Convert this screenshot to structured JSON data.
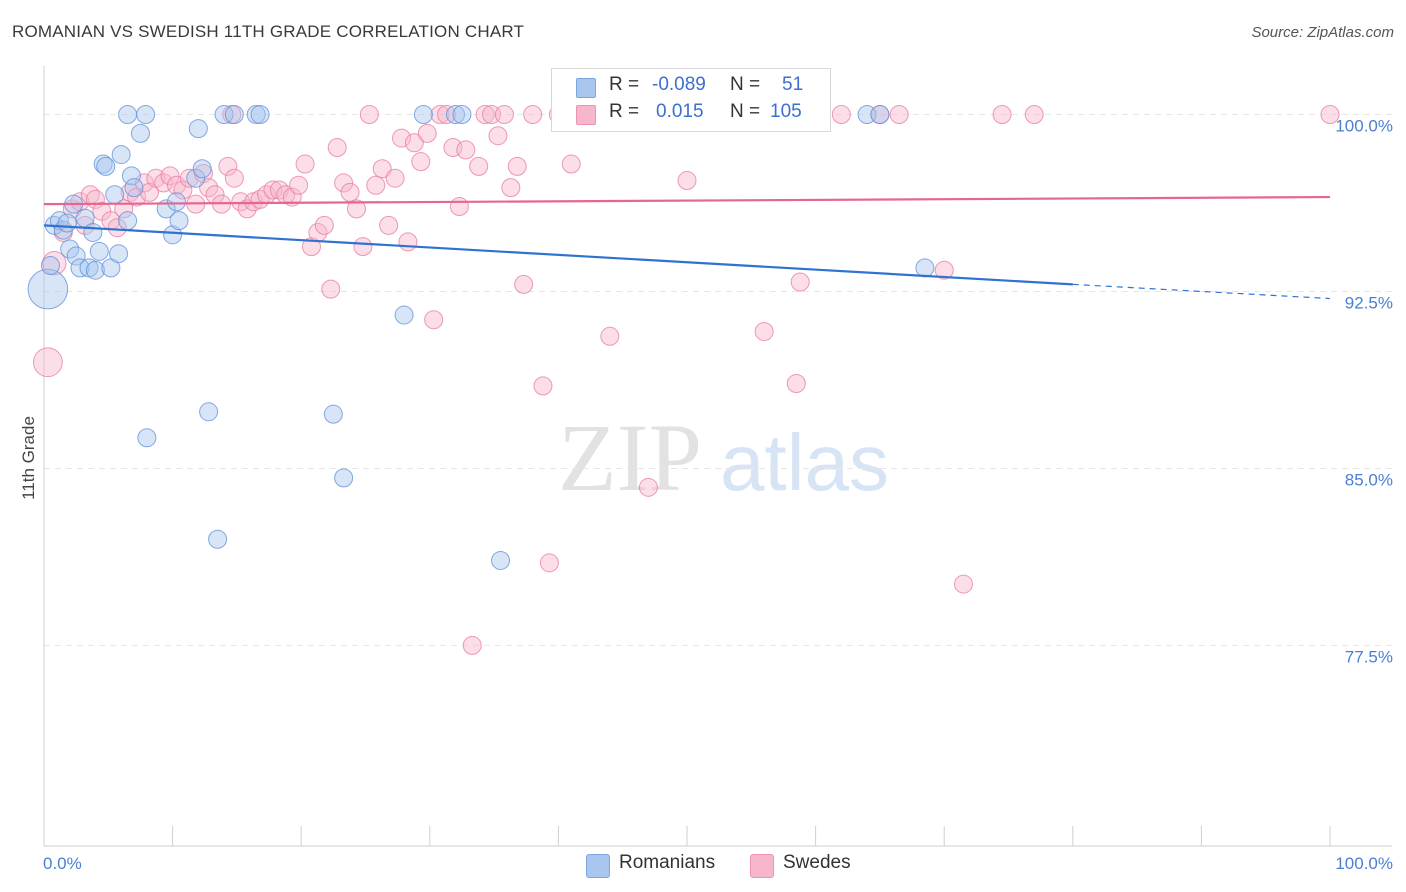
{
  "title": "ROMANIAN VS SWEDISH 11TH GRADE CORRELATION CHART",
  "source": "Source: ZipAtlas.com",
  "watermark": {
    "zip": "ZIP",
    "atlas": "atlas"
  },
  "legend": {
    "rows": [
      {
        "r_label": "R =",
        "r_value": "-0.089",
        "n_label": "N =",
        "n_value": "51",
        "color": "#a9c6ee"
      },
      {
        "r_label": "R =",
        "r_value": "0.015",
        "n_label": "N =",
        "n_value": "105",
        "color": "#f7b6cb"
      }
    ]
  },
  "bottom_legend": [
    {
      "label": "Romanians",
      "color": "#a9c6ee"
    },
    {
      "label": "Swedes",
      "color": "#f7b6cb"
    }
  ],
  "chart_data": {
    "type": "scatter",
    "title": "ROMANIAN VS SWEDISH 11TH GRADE CORRELATION CHART",
    "ylabel": "11th Grade",
    "xlabel": "",
    "xlim": [
      0,
      100
    ],
    "ylim": [
      69.0,
      101.8
    ],
    "x_tick_labels": [
      {
        "value": 0,
        "label": "0.0%"
      },
      {
        "value": 100,
        "label": "100.0%"
      }
    ],
    "y_tick_labels": [
      {
        "value": 100.0,
        "label": "100.0%"
      },
      {
        "value": 92.5,
        "label": "92.5%"
      },
      {
        "value": 85.0,
        "label": "85.0%"
      },
      {
        "value": 77.5,
        "label": "77.5%"
      }
    ],
    "grid": true,
    "series": [
      {
        "name": "Romanians",
        "color": "#5b8fd9",
        "fill": "#a9c6ee",
        "r": -0.089,
        "n": 51,
        "trend": {
          "x0": 0,
          "y0": 95.3,
          "x1": 80,
          "y1": 92.8,
          "dash_to_x": 100,
          "dash_to_y": 92.2
        },
        "points": [
          [
            0.3,
            92.6,
            2.2
          ],
          [
            0.5,
            93.6,
            1
          ],
          [
            0.8,
            95.3,
            1
          ],
          [
            1.2,
            95.5,
            1
          ],
          [
            1.5,
            95.1,
            1
          ],
          [
            1.8,
            95.4,
            1
          ],
          [
            2.0,
            94.3,
            1
          ],
          [
            2.3,
            96.2,
            1
          ],
          [
            2.5,
            94.0,
            1
          ],
          [
            2.8,
            93.5,
            1
          ],
          [
            3.2,
            95.6,
            1
          ],
          [
            3.5,
            93.5,
            1
          ],
          [
            3.8,
            95.0,
            1
          ],
          [
            4.0,
            93.4,
            1
          ],
          [
            4.3,
            94.2,
            1
          ],
          [
            4.6,
            97.9,
            1
          ],
          [
            4.8,
            97.8,
            1
          ],
          [
            5.2,
            93.5,
            1
          ],
          [
            5.5,
            96.6,
            1
          ],
          [
            5.8,
            94.1,
            1
          ],
          [
            6.0,
            98.3,
            1
          ],
          [
            6.5,
            95.5,
            1
          ],
          [
            6.8,
            97.4,
            1
          ],
          [
            7.0,
            96.9,
            1
          ],
          [
            7.5,
            99.2,
            1
          ],
          [
            8.0,
            86.3,
            1
          ],
          [
            9.5,
            96.0,
            1
          ],
          [
            10.0,
            94.9,
            1
          ],
          [
            10.3,
            96.3,
            1
          ],
          [
            10.5,
            95.5,
            1
          ],
          [
            11.8,
            97.3,
            1
          ],
          [
            12.0,
            99.4,
            1
          ],
          [
            12.3,
            97.7,
            1
          ],
          [
            12.8,
            87.4,
            1
          ],
          [
            13.5,
            82.0,
            1
          ],
          [
            14.0,
            100.0,
            1
          ],
          [
            14.8,
            100.0,
            1
          ],
          [
            16.5,
            100.0,
            1
          ],
          [
            16.8,
            100.0,
            1
          ],
          [
            22.5,
            87.3,
            1
          ],
          [
            23.3,
            84.6,
            1
          ],
          [
            28.0,
            91.5,
            1
          ],
          [
            29.5,
            100.0,
            1
          ],
          [
            32.0,
            100.0,
            1
          ],
          [
            35.5,
            81.1,
            1
          ],
          [
            64.0,
            100.0,
            1
          ],
          [
            65.0,
            100.0,
            1
          ],
          [
            68.5,
            93.5,
            1
          ],
          [
            6.5,
            100.0,
            1
          ],
          [
            7.9,
            100.0,
            1
          ],
          [
            32.5,
            100.0,
            1
          ]
        ]
      },
      {
        "name": "Swedes",
        "color": "#e87a9f",
        "fill": "#f7b6cb",
        "r": 0.015,
        "n": 105,
        "trend": {
          "x0": 0,
          "y0": 96.2,
          "x1": 100,
          "y1": 96.5
        },
        "points": [
          [
            0.3,
            89.5,
            1.6
          ],
          [
            0.8,
            93.7,
            1.3
          ],
          [
            1.5,
            95.0,
            1
          ],
          [
            2.2,
            96.0,
            1
          ],
          [
            2.8,
            96.3,
            1
          ],
          [
            3.2,
            95.3,
            1
          ],
          [
            3.6,
            96.6,
            1
          ],
          [
            4.0,
            96.4,
            1
          ],
          [
            4.5,
            95.9,
            1
          ],
          [
            5.2,
            95.5,
            1
          ],
          [
            5.7,
            95.2,
            1
          ],
          [
            6.2,
            96.0,
            1
          ],
          [
            6.7,
            96.7,
            1
          ],
          [
            7.2,
            96.5,
            1
          ],
          [
            7.8,
            97.1,
            1
          ],
          [
            8.2,
            96.7,
            1
          ],
          [
            8.7,
            97.3,
            1
          ],
          [
            9.3,
            97.1,
            1
          ],
          [
            9.8,
            97.4,
            1
          ],
          [
            10.3,
            97.0,
            1
          ],
          [
            10.8,
            96.8,
            1
          ],
          [
            11.3,
            97.3,
            1
          ],
          [
            11.8,
            96.2,
            1
          ],
          [
            12.4,
            97.5,
            1
          ],
          [
            12.8,
            96.9,
            1
          ],
          [
            13.3,
            96.6,
            1
          ],
          [
            13.8,
            96.2,
            1
          ],
          [
            14.3,
            97.8,
            1
          ],
          [
            14.8,
            97.3,
            1
          ],
          [
            15.3,
            96.3,
            1
          ],
          [
            15.8,
            96.0,
            1
          ],
          [
            16.3,
            96.3,
            1
          ],
          [
            16.8,
            96.4,
            1
          ],
          [
            17.3,
            96.6,
            1
          ],
          [
            17.8,
            96.8,
            1
          ],
          [
            18.3,
            96.8,
            1
          ],
          [
            18.8,
            96.6,
            1
          ],
          [
            19.3,
            96.5,
            1
          ],
          [
            19.8,
            97.0,
            1
          ],
          [
            20.3,
            97.9,
            1
          ],
          [
            20.8,
            94.4,
            1
          ],
          [
            21.3,
            95.0,
            1
          ],
          [
            21.8,
            95.3,
            1
          ],
          [
            22.3,
            92.6,
            1
          ],
          [
            22.8,
            98.6,
            1
          ],
          [
            23.3,
            97.1,
            1
          ],
          [
            23.8,
            96.7,
            1
          ],
          [
            24.3,
            96.0,
            1
          ],
          [
            24.8,
            94.4,
            1
          ],
          [
            25.3,
            100.0,
            1
          ],
          [
            25.8,
            97.0,
            1
          ],
          [
            26.3,
            97.7,
            1
          ],
          [
            26.8,
            95.3,
            1
          ],
          [
            27.3,
            97.3,
            1
          ],
          [
            27.8,
            99.0,
            1
          ],
          [
            28.3,
            94.6,
            1
          ],
          [
            28.8,
            98.8,
            1
          ],
          [
            29.3,
            98.0,
            1
          ],
          [
            29.8,
            99.2,
            1
          ],
          [
            30.3,
            91.3,
            1
          ],
          [
            30.8,
            100.0,
            1
          ],
          [
            31.3,
            100.0,
            1
          ],
          [
            31.8,
            98.6,
            1
          ],
          [
            32.3,
            96.1,
            1
          ],
          [
            32.8,
            98.5,
            1
          ],
          [
            33.3,
            77.5,
            1
          ],
          [
            33.8,
            97.8,
            1
          ],
          [
            34.3,
            100.0,
            1
          ],
          [
            34.8,
            100.0,
            1
          ],
          [
            35.3,
            99.1,
            1
          ],
          [
            35.8,
            100.0,
            1
          ],
          [
            36.3,
            96.9,
            1
          ],
          [
            36.8,
            97.8,
            1
          ],
          [
            37.3,
            92.8,
            1
          ],
          [
            38.8,
            88.5,
            1
          ],
          [
            39.3,
            81.0,
            1
          ],
          [
            40.0,
            100.0,
            1
          ],
          [
            41.0,
            97.9,
            1
          ],
          [
            42.0,
            100.0,
            1
          ],
          [
            44.0,
            90.6,
            1
          ],
          [
            47.0,
            84.2,
            1
          ],
          [
            50.0,
            97.2,
            1
          ],
          [
            53.0,
            100.0,
            1
          ],
          [
            55.0,
            100.0,
            1
          ],
          [
            56.0,
            90.8,
            1
          ],
          [
            58.0,
            100.0,
            1
          ],
          [
            58.5,
            88.6,
            1
          ],
          [
            58.8,
            92.9,
            1
          ],
          [
            62.0,
            100.0,
            1
          ],
          [
            65.0,
            100.0,
            1
          ],
          [
            70.0,
            93.4,
            1
          ],
          [
            71.5,
            80.1,
            1
          ],
          [
            74.5,
            100.0,
            1
          ],
          [
            77.0,
            100.0,
            1
          ],
          [
            100.0,
            100.0,
            1
          ],
          [
            38.0,
            100.0,
            1
          ],
          [
            44.5,
            100.0,
            1
          ],
          [
            46.5,
            100.0,
            1
          ],
          [
            48.5,
            100.0,
            1
          ],
          [
            51.5,
            100.0,
            1
          ],
          [
            57.0,
            100.0,
            1
          ],
          [
            60.0,
            100.0,
            1
          ],
          [
            66.5,
            100.0,
            1
          ],
          [
            41.5,
            100.0,
            1
          ],
          [
            14.6,
            100.0,
            1
          ]
        ]
      }
    ]
  }
}
